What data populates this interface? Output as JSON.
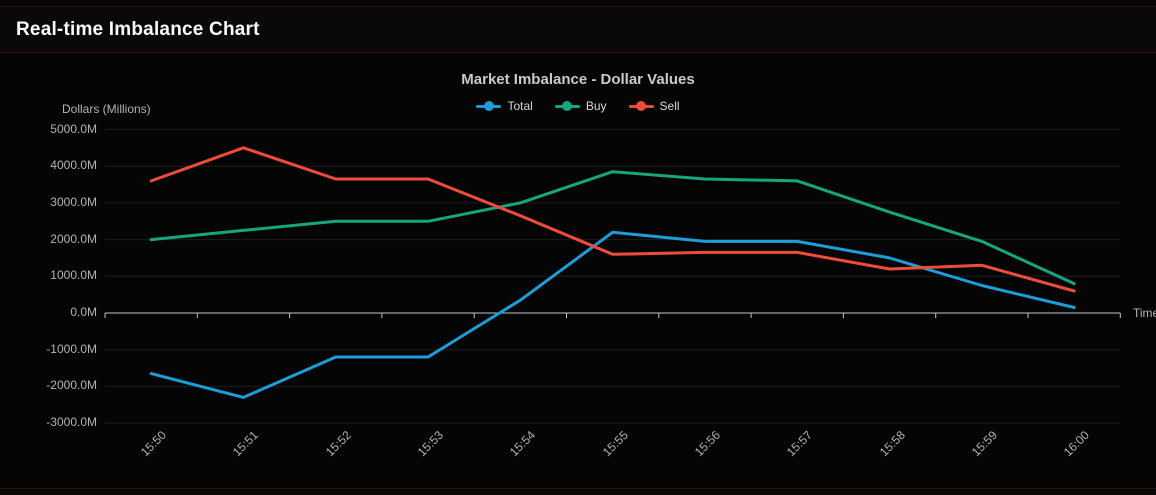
{
  "header": {
    "title": "Real-time Imbalance Chart"
  },
  "chart": {
    "title": "Market Imbalance - Dollar Values",
    "y_axis_name": "Dollars (Millions)",
    "x_axis_name": "Time"
  },
  "chart_data": {
    "type": "line",
    "title": "Market Imbalance - Dollar Values",
    "xlabel": "Time",
    "ylabel": "Dollars (Millions)",
    "categories": [
      "15:50",
      "15:51",
      "15:52",
      "15:53",
      "15:54",
      "15:55",
      "15:56",
      "15:57",
      "15:58",
      "15:59",
      "16:00"
    ],
    "series": [
      {
        "name": "Total",
        "color": "#1c9dd9",
        "values": [
          -1650,
          -2300,
          -1200,
          -1200,
          350,
          2200,
          1950,
          1950,
          1500,
          750,
          150
        ]
      },
      {
        "name": "Buy",
        "color": "#16a57f",
        "values": [
          2000,
          2250,
          2500,
          2500,
          3000,
          3850,
          3650,
          3600,
          2750,
          1950,
          800
        ]
      },
      {
        "name": "Sell",
        "color": "#ee4c3b",
        "values": [
          3600,
          4500,
          3650,
          3650,
          2650,
          1600,
          1650,
          1650,
          1200,
          1300,
          600
        ]
      }
    ],
    "ylim": [
      -3000,
      5000
    ],
    "y_tick_step": 1000,
    "y_ticks": [
      {
        "value": 5000,
        "label": "5000.0M"
      },
      {
        "value": 4000,
        "label": "4000.0M"
      },
      {
        "value": 3000,
        "label": "3000.0M"
      },
      {
        "value": 2000,
        "label": "2000.0M"
      },
      {
        "value": 1000,
        "label": "1000.0M"
      },
      {
        "value": 0,
        "label": "0.0M"
      },
      {
        "value": -1000,
        "label": "-1000.0M"
      },
      {
        "value": -2000,
        "label": "-2000.0M"
      },
      {
        "value": -3000,
        "label": "-3000.0M"
      }
    ],
    "grid": true,
    "legend_position": "top",
    "colors": {
      "gridline": "#1e1e1e",
      "zero_axis": "#c2c2ca",
      "tick_label": "#b2b2ba"
    }
  }
}
